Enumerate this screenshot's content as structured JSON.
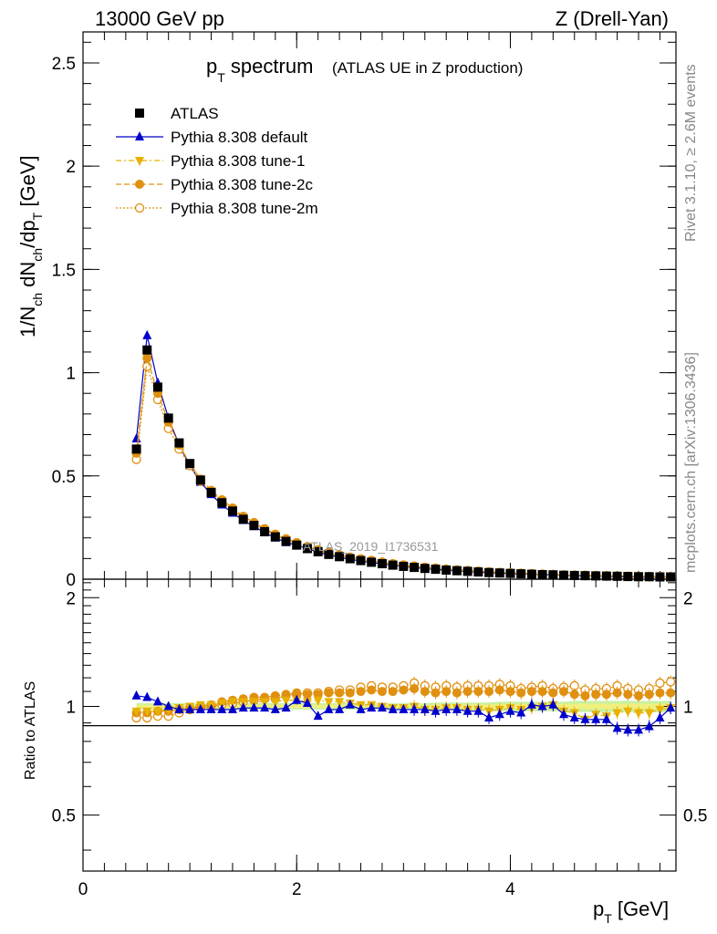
{
  "header": {
    "left": "13000 GeV pp",
    "right": "Z (Drell-Yan)"
  },
  "title": {
    "main": "p",
    "main_sub": "T",
    "main_rest": " spectrum",
    "sub": "(ATLAS UE in Z production)"
  },
  "side": {
    "rivet": "Rivet 3.1.10, ≥ 2.6M events",
    "mcplots": "mcplots.cern.ch [arXiv:1306.3436]"
  },
  "watermark": "ATLAS_2019_I1736531",
  "axes": {
    "ylabel_main": "1/N",
    "ylabel_main_sub1": "ch",
    "ylabel_main_mid": " dN",
    "ylabel_main_sub2": "ch",
    "ylabel_main_mid2": "/dp",
    "ylabel_main_sub3": "T",
    "ylabel_main_end": " [GeV]",
    "ylabel_ratio": "Ratio to ATLAS",
    "xlabel": "p",
    "xlabel_sub": "T",
    "xlabel_end": " [GeV]"
  },
  "legend": [
    {
      "label": "ATLAS",
      "color": "#000000",
      "marker": "square",
      "line": "none"
    },
    {
      "label": "Pythia 8.308 default",
      "color": "#0000cc",
      "marker": "triangle",
      "line": "solid"
    },
    {
      "label": "Pythia 8.308 tune-1",
      "color": "#e8b000",
      "marker": "triangle-down",
      "line": "dashdot"
    },
    {
      "label": "Pythia 8.308 tune-2c",
      "color": "#e09010",
      "marker": "circle",
      "line": "dashed"
    },
    {
      "label": "Pythia 8.308 tune-2m",
      "color": "#e09010",
      "marker": "circle-open",
      "line": "dotted"
    }
  ],
  "chart_data": [
    {
      "type": "scatter",
      "panel": "main",
      "title": "pT spectrum (ATLAS UE in Z production)",
      "xlabel": "pT [GeV]",
      "ylabel": "1/Nch dNch/dpT [GeV]",
      "xlim": [
        0,
        5.55
      ],
      "ylim": [
        0,
        2.65
      ],
      "xticks": [
        0,
        2,
        4
      ],
      "yticks": [
        0,
        0.5,
        1,
        1.5,
        2,
        2.5
      ],
      "ytick_labels": [
        "0",
        "0.5",
        "1",
        "1.5",
        "2",
        "2.5"
      ],
      "x": [
        0.5,
        0.6,
        0.7,
        0.8,
        0.9,
        1.0,
        1.1,
        1.2,
        1.3,
        1.4,
        1.5,
        1.6,
        1.7,
        1.8,
        1.9,
        2.0,
        2.1,
        2.2,
        2.3,
        2.4,
        2.5,
        2.6,
        2.7,
        2.8,
        2.9,
        3.0,
        3.1,
        3.2,
        3.3,
        3.4,
        3.5,
        3.6,
        3.7,
        3.8,
        3.9,
        4.0,
        4.1,
        4.2,
        4.3,
        4.4,
        4.5,
        4.6,
        4.7,
        4.8,
        4.9,
        5.0,
        5.1,
        5.2,
        5.3,
        5.4,
        5.5
      ],
      "series": [
        {
          "name": "ATLAS",
          "values": [
            0.63,
            1.11,
            0.93,
            0.78,
            0.66,
            0.56,
            0.48,
            0.42,
            0.37,
            0.33,
            0.29,
            0.26,
            0.23,
            0.205,
            0.183,
            0.165,
            0.148,
            0.133,
            0.12,
            0.109,
            0.099,
            0.09,
            0.082,
            0.075,
            0.068,
            0.062,
            0.057,
            0.052,
            0.048,
            0.044,
            0.041,
            0.038,
            0.035,
            0.032,
            0.03,
            0.028,
            0.026,
            0.024,
            0.022,
            0.021,
            0.019,
            0.018,
            0.017,
            0.016,
            0.015,
            0.014,
            0.013,
            0.012,
            0.012,
            0.011,
            0.011
          ]
        },
        {
          "name": "Pythia 8.308 default",
          "values": [
            0.68,
            1.18,
            0.95,
            0.78,
            0.65,
            0.55,
            0.47,
            0.41,
            0.36,
            0.32,
            0.285,
            0.255,
            0.226,
            0.2,
            0.178,
            0.165,
            0.148,
            0.13,
            0.118,
            0.106,
            0.096,
            0.088,
            0.081,
            0.074,
            0.067,
            0.061,
            0.056,
            0.051,
            0.047,
            0.043,
            0.04,
            0.037,
            0.034,
            0.031,
            0.029,
            0.027,
            0.025,
            0.024,
            0.022,
            0.021,
            0.018,
            0.017,
            0.016,
            0.015,
            0.014,
            0.012,
            0.011,
            0.0105,
            0.0112,
            0.0102,
            0.0108
          ]
        },
        {
          "name": "Pythia 8.308 tune-1",
          "values": [
            0.61,
            1.07,
            0.9,
            0.76,
            0.65,
            0.56,
            0.485,
            0.425,
            0.38,
            0.34,
            0.3,
            0.268,
            0.238,
            0.212,
            0.19,
            0.17,
            0.153,
            0.138,
            0.124,
            0.112,
            0.102,
            0.093,
            0.085,
            0.077,
            0.07,
            0.064,
            0.059,
            0.054,
            0.05,
            0.046,
            0.043,
            0.039,
            0.036,
            0.033,
            0.031,
            0.029,
            0.027,
            0.025,
            0.023,
            0.022,
            0.02,
            0.018,
            0.017,
            0.016,
            0.015,
            0.014,
            0.013,
            0.012,
            0.012,
            0.011,
            0.011
          ]
        },
        {
          "name": "Pythia 8.308 tune-2c",
          "values": [
            0.61,
            1.07,
            0.9,
            0.76,
            0.65,
            0.56,
            0.485,
            0.43,
            0.385,
            0.345,
            0.305,
            0.275,
            0.245,
            0.218,
            0.196,
            0.177,
            0.158,
            0.142,
            0.128,
            0.116,
            0.106,
            0.097,
            0.089,
            0.081,
            0.073,
            0.067,
            0.062,
            0.056,
            0.052,
            0.048,
            0.044,
            0.041,
            0.038,
            0.035,
            0.032,
            0.03,
            0.028,
            0.026,
            0.024,
            0.022,
            0.02,
            0.019,
            0.018,
            0.017,
            0.016,
            0.015,
            0.014,
            0.013,
            0.013,
            0.012,
            0.012
          ]
        },
        {
          "name": "Pythia 8.308 tune-2m",
          "values": [
            0.58,
            1.03,
            0.87,
            0.73,
            0.63,
            0.55,
            0.475,
            0.42,
            0.375,
            0.335,
            0.3,
            0.27,
            0.24,
            0.215,
            0.195,
            0.176,
            0.158,
            0.143,
            0.129,
            0.117,
            0.107,
            0.098,
            0.091,
            0.083,
            0.075,
            0.069,
            0.064,
            0.058,
            0.054,
            0.049,
            0.045,
            0.042,
            0.039,
            0.036,
            0.033,
            0.031,
            0.029,
            0.027,
            0.025,
            0.023,
            0.021,
            0.02,
            0.019,
            0.018,
            0.017,
            0.016,
            0.015,
            0.014,
            0.013,
            0.013,
            0.012
          ]
        }
      ]
    },
    {
      "type": "scatter",
      "panel": "ratio",
      "ylabel": "Ratio to ATLAS",
      "xlim": [
        0,
        5.55
      ],
      "ylim": [
        0.35,
        2.25
      ],
      "yscale": "log",
      "xticks": [
        0,
        2,
        4
      ],
      "xtick_labels": [
        "0",
        "2",
        "4"
      ],
      "yticks": [
        0.5,
        1,
        2
      ],
      "ytick_labels": [
        "0.5",
        "1",
        "2"
      ],
      "x": [
        0.5,
        0.6,
        0.7,
        0.8,
        0.9,
        1.0,
        1.1,
        1.2,
        1.3,
        1.4,
        1.5,
        1.6,
        1.7,
        1.8,
        1.9,
        2.0,
        2.1,
        2.2,
        2.3,
        2.4,
        2.5,
        2.6,
        2.7,
        2.8,
        2.9,
        3.0,
        3.1,
        3.2,
        3.3,
        3.4,
        3.5,
        3.6,
        3.7,
        3.8,
        3.9,
        4.0,
        4.1,
        4.2,
        4.3,
        4.4,
        4.5,
        4.6,
        4.7,
        4.8,
        4.9,
        5.0,
        5.1,
        5.2,
        5.3,
        5.4,
        5.5
      ],
      "band_halfwidth": [
        0.02,
        0.02,
        0.02,
        0.02,
        0.02,
        0.02,
        0.02,
        0.02,
        0.02,
        0.02,
        0.02,
        0.02,
        0.02,
        0.02,
        0.02,
        0.02,
        0.02,
        0.02,
        0.02,
        0.02,
        0.02,
        0.02,
        0.02,
        0.02,
        0.02,
        0.02,
        0.02,
        0.02,
        0.025,
        0.025,
        0.025,
        0.025,
        0.025,
        0.025,
        0.03,
        0.03,
        0.03,
        0.03,
        0.03,
        0.03,
        0.03,
        0.035,
        0.035,
        0.035,
        0.035,
        0.035,
        0.035,
        0.035,
        0.035,
        0.035,
        0.035
      ],
      "series": [
        {
          "name": "Pythia 8.308 default",
          "values": [
            1.07,
            1.06,
            1.03,
            1.0,
            0.98,
            0.98,
            0.98,
            0.98,
            0.98,
            0.98,
            0.99,
            0.99,
            0.99,
            0.98,
            0.99,
            1.04,
            1.02,
            0.94,
            0.98,
            0.98,
            1.01,
            0.98,
            0.99,
            0.99,
            0.98,
            0.98,
            0.98,
            0.98,
            0.97,
            0.98,
            0.98,
            0.97,
            0.97,
            0.93,
            0.95,
            0.97,
            0.96,
            1.01,
            1.0,
            1.01,
            0.95,
            0.93,
            0.92,
            0.92,
            0.92,
            0.87,
            0.86,
            0.86,
            0.88,
            0.93,
            0.99
          ]
        },
        {
          "name": "Pythia 8.308 tune-1",
          "values": [
            0.97,
            0.97,
            0.97,
            0.98,
            0.99,
            1.0,
            1.01,
            1.01,
            1.02,
            1.03,
            1.03,
            1.03,
            1.03,
            1.03,
            1.04,
            1.04,
            1.03,
            1.04,
            1.03,
            1.03,
            1.02,
            1.01,
            1.01,
            1.0,
            0.99,
            0.99,
            1.0,
            0.98,
            0.98,
            0.99,
            0.99,
            0.98,
            0.98,
            0.97,
            0.98,
            0.99,
            0.98,
            0.99,
            1.0,
            1.01,
            0.97,
            0.96,
            0.92,
            0.95,
            0.94,
            0.96,
            0.97,
            0.96,
            0.96,
            0.98,
            0.99
          ]
        },
        {
          "name": "Pythia 8.308 tune-2c",
          "values": [
            0.96,
            0.96,
            0.97,
            0.97,
            0.98,
            0.99,
            1.0,
            1.01,
            1.03,
            1.04,
            1.05,
            1.06,
            1.06,
            1.07,
            1.08,
            1.09,
            1.08,
            1.08,
            1.09,
            1.09,
            1.09,
            1.1,
            1.11,
            1.1,
            1.1,
            1.11,
            1.12,
            1.1,
            1.09,
            1.1,
            1.09,
            1.1,
            1.1,
            1.1,
            1.11,
            1.1,
            1.09,
            1.1,
            1.1,
            1.09,
            1.1,
            1.08,
            1.07,
            1.08,
            1.08,
            1.09,
            1.08,
            1.07,
            1.08,
            1.09,
            1.09
          ]
        },
        {
          "name": "Pythia 8.308 tune-2m",
          "values": [
            0.93,
            0.93,
            0.94,
            0.94,
            0.96,
            0.98,
            0.99,
            1.0,
            1.01,
            1.02,
            1.03,
            1.04,
            1.05,
            1.05,
            1.07,
            1.08,
            1.09,
            1.09,
            1.1,
            1.11,
            1.11,
            1.13,
            1.14,
            1.13,
            1.13,
            1.14,
            1.16,
            1.14,
            1.13,
            1.14,
            1.13,
            1.14,
            1.14,
            1.14,
            1.15,
            1.14,
            1.12,
            1.13,
            1.14,
            1.12,
            1.13,
            1.14,
            1.11,
            1.12,
            1.12,
            1.14,
            1.12,
            1.11,
            1.12,
            1.16,
            1.17
          ]
        }
      ]
    }
  ]
}
